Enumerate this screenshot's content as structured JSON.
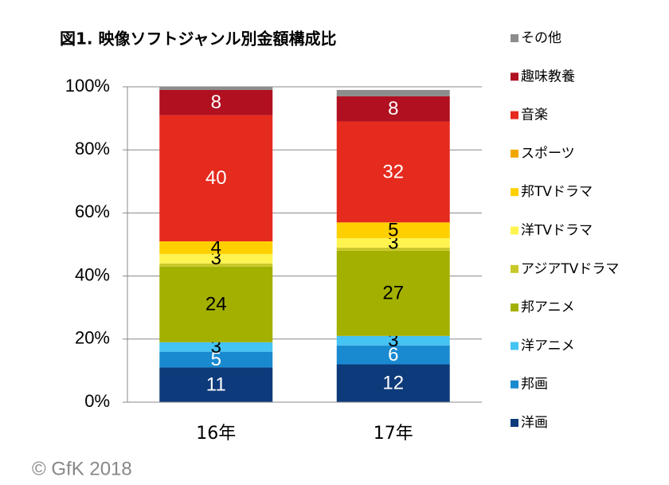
{
  "chart_data": {
    "type": "stacked_bar",
    "title": "図1. 映像ソフトジャンル別金額構成比",
    "categories": [
      "16年",
      "17年"
    ],
    "ylim": [
      0,
      100
    ],
    "yticks": [
      {
        "value": 0,
        "label": "0%"
      },
      {
        "value": 20,
        "label": "20%"
      },
      {
        "value": 40,
        "label": "40%"
      },
      {
        "value": 60,
        "label": "60%"
      },
      {
        "value": 80,
        "label": "80%"
      },
      {
        "value": 100,
        "label": "100%"
      }
    ],
    "grid": true,
    "legend": "right",
    "series": [
      {
        "name": "洋画",
        "color": "#0d3a7a",
        "values": [
          11,
          12
        ],
        "value_labels": [
          "11",
          "12"
        ]
      },
      {
        "name": "邦画",
        "color": "#1a8ad0",
        "values": [
          5,
          6
        ],
        "value_labels": [
          "5",
          "6"
        ]
      },
      {
        "name": "洋アニメ",
        "color": "#45c3f2",
        "values": [
          3,
          3
        ],
        "value_labels": [
          "3",
          "3"
        ]
      },
      {
        "name": "邦アニメ",
        "color": "#a3b000",
        "values": [
          24,
          27
        ],
        "value_labels": [
          "24",
          "27"
        ]
      },
      {
        "name": "アジアTVドラマ",
        "color": "#c9c82a",
        "values": [
          1,
          1
        ],
        "value_labels": [
          null,
          null
        ]
      },
      {
        "name": "洋TVドラマ",
        "color": "#fff44f",
        "values": [
          3,
          3
        ],
        "value_labels": [
          "3",
          "3"
        ]
      },
      {
        "name": "邦TVドラマ",
        "color": "#ffd000",
        "values": [
          4,
          5
        ],
        "value_labels": [
          "4",
          "5"
        ]
      },
      {
        "name": "スポーツ",
        "color": "#f0a800",
        "values": [
          0,
          0
        ],
        "value_labels": [
          null,
          null
        ]
      },
      {
        "name": "音楽",
        "color": "#e52a1e",
        "values": [
          40,
          32
        ],
        "value_labels": [
          "40",
          "32"
        ]
      },
      {
        "name": "趣味教養",
        "color": "#b01020",
        "values": [
          8,
          8
        ],
        "value_labels": [
          "8",
          "8"
        ]
      },
      {
        "name": "その他",
        "color": "#8c8c8c",
        "values": [
          1,
          2
        ],
        "value_labels": [
          null,
          null
        ]
      }
    ]
  },
  "footer": "© GfK 2018"
}
